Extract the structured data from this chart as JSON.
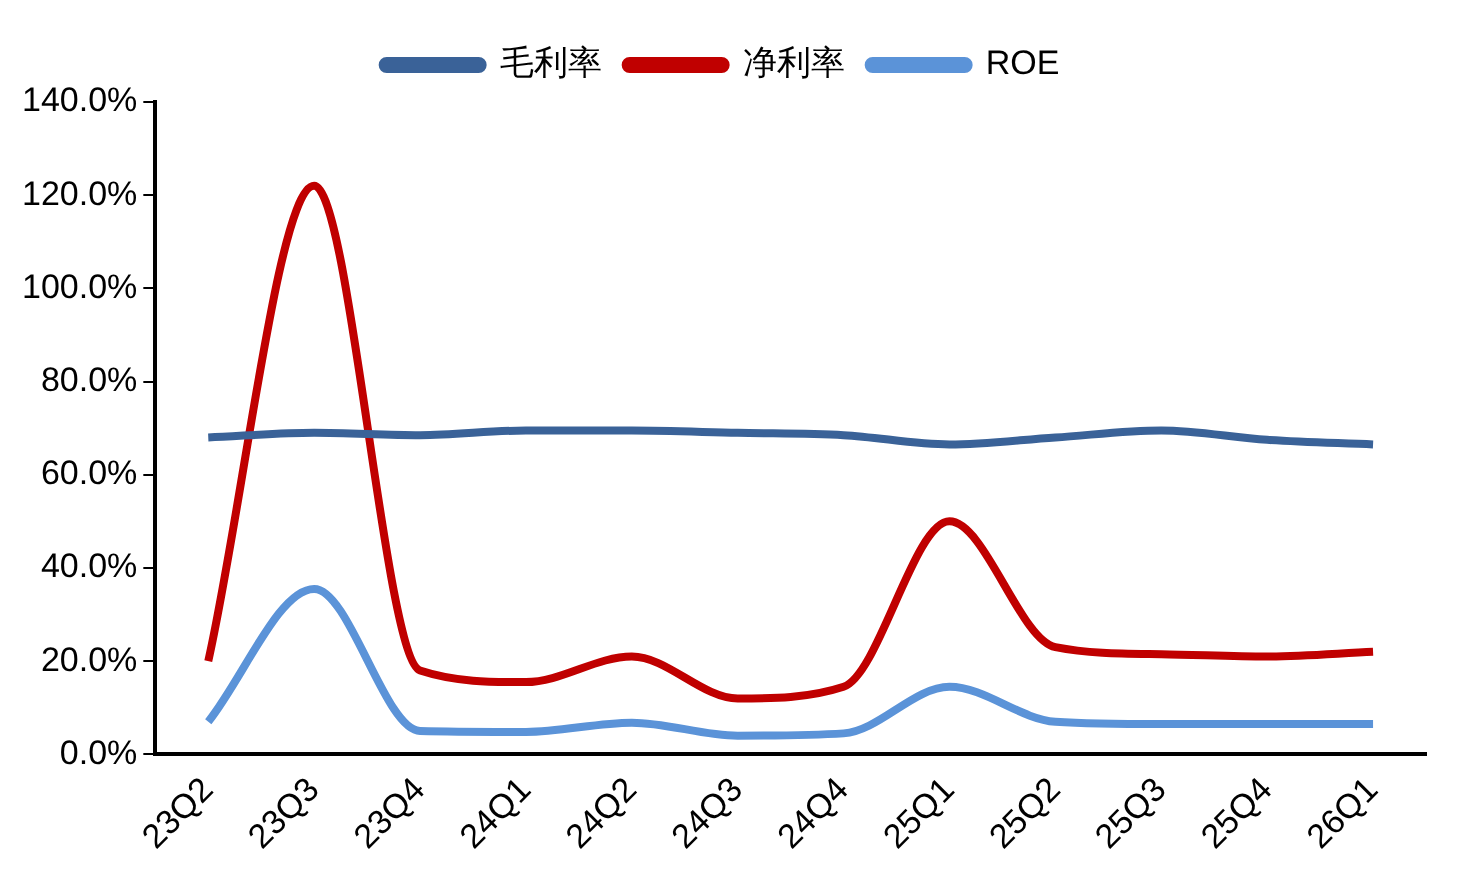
{
  "chart_data": {
    "type": "line",
    "categories": [
      "23Q2",
      "23Q3",
      "23Q4",
      "24Q1",
      "24Q2",
      "24Q3",
      "24Q4",
      "25Q1",
      "25Q2",
      "25Q3",
      "25Q4",
      "26Q1"
    ],
    "series": [
      {
        "name": "毛利率",
        "color": "#3a6298",
        "values": [
          68,
          69,
          68.5,
          69.5,
          69.5,
          69,
          68.5,
          66.5,
          68,
          69.5,
          67.5,
          66.5
        ]
      },
      {
        "name": "净利率",
        "color": "#c00000",
        "values": [
          20,
          122,
          18,
          15.5,
          21,
          12,
          14.5,
          50,
          23,
          21.5,
          21,
          22
        ]
      },
      {
        "name": "ROE",
        "color": "#5b93d8",
        "values": [
          7,
          35.5,
          5,
          4.8,
          6.8,
          4,
          4.5,
          14.5,
          7,
          6.5,
          6.5,
          6.5
        ]
      }
    ],
    "ylim": [
      0,
      140
    ],
    "yticks": [
      {
        "value": 0,
        "label": "0.0%"
      },
      {
        "value": 20,
        "label": "20.0%"
      },
      {
        "value": 40,
        "label": "40.0%"
      },
      {
        "value": 60,
        "label": "60.0%"
      },
      {
        "value": 80,
        "label": "80.0%"
      },
      {
        "value": 100,
        "label": "100.0%"
      },
      {
        "value": 120,
        "label": "120.0%"
      },
      {
        "value": 140,
        "label": "140.0%"
      }
    ],
    "grid": false,
    "legend": "top",
    "marker": "none",
    "line_style": "solid"
  }
}
